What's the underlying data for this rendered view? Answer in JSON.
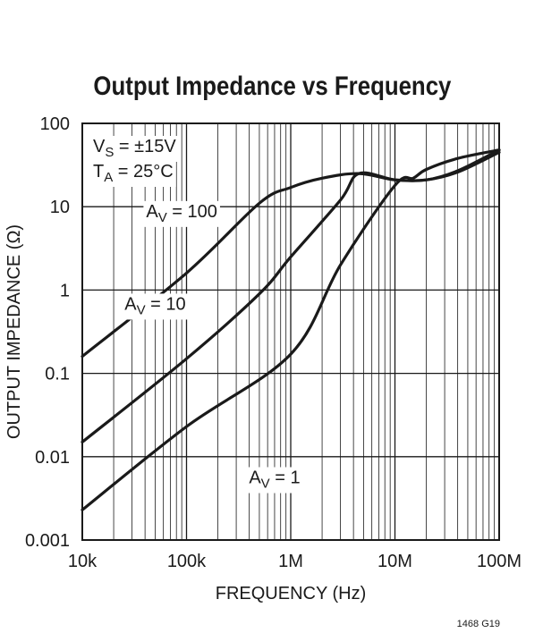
{
  "chart_data": {
    "type": "line",
    "title": "Output Impedance vs Frequency",
    "xlabel": "FREQUENCY (Hz)",
    "ylabel": "OUTPUT IMPEDANCE (Ω)",
    "x_scale": "log",
    "y_scale": "log",
    "xlim": [
      10000,
      100000000
    ],
    "ylim": [
      0.001,
      100
    ],
    "x_ticks": [
      {
        "value": 10000,
        "label": "10k"
      },
      {
        "value": 100000,
        "label": "100k"
      },
      {
        "value": 1000000,
        "label": "1M"
      },
      {
        "value": 10000000,
        "label": "10M"
      },
      {
        "value": 100000000,
        "label": "100M"
      }
    ],
    "y_ticks": [
      {
        "value": 0.001,
        "label": "0.001"
      },
      {
        "value": 0.01,
        "label": "0.01"
      },
      {
        "value": 0.1,
        "label": "0.1"
      },
      {
        "value": 1,
        "label": "1"
      },
      {
        "value": 10,
        "label": "10"
      },
      {
        "value": 100,
        "label": "100"
      }
    ],
    "grid": true,
    "conditions": {
      "vs": {
        "main": "V",
        "sub": "S",
        "rest": " = ±15V"
      },
      "ta": {
        "main": "T",
        "sub": "A",
        "rest": " = 25°C"
      }
    },
    "series": [
      {
        "name": "AV = 100",
        "label": {
          "main": "A",
          "sub": "V",
          "rest": " = 100"
        },
        "x": [
          10000,
          100000,
          500000,
          1000000,
          2000000,
          4500000,
          10000000,
          20000000,
          40000000,
          100000000
        ],
        "y": [
          0.16,
          1.6,
          11,
          17,
          22,
          25,
          21,
          21,
          26,
          45
        ]
      },
      {
        "name": "AV = 10",
        "label": {
          "main": "A",
          "sub": "V",
          "rest": " = 10"
        },
        "x": [
          10000,
          100000,
          500000,
          1000000,
          3000000,
          4500000,
          10000000,
          20000000,
          40000000,
          100000000
        ],
        "y": [
          0.015,
          0.15,
          0.9,
          2.5,
          12,
          25,
          21,
          21,
          27,
          48
        ]
      },
      {
        "name": "AV = 1",
        "label": {
          "main": "A",
          "sub": "V",
          "rest": " = 1"
        },
        "x": [
          10000,
          100000,
          1000000,
          3000000,
          10000000,
          15000000,
          20000000,
          40000000,
          100000000
        ],
        "y": [
          0.0023,
          0.023,
          0.17,
          2,
          18,
          22,
          28,
          38,
          48
        ]
      }
    ]
  },
  "figure_id": "1468 G19"
}
